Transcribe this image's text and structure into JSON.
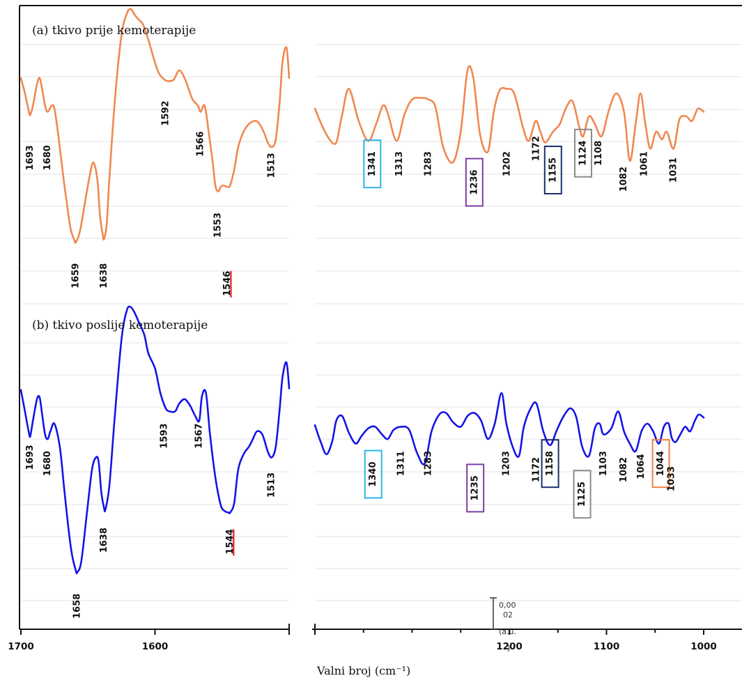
{
  "chart_data": {
    "type": "line",
    "xlabel": "Valni broj (cm⁻¹)",
    "x_tick_labels": [
      "1700",
      "1600",
      "1200",
      "1100",
      "1000"
    ],
    "grid": true,
    "scale_bar": [
      "0,00",
      "02",
      "(a.u.",
      ")"
    ],
    "colors": {
      "spectrum_a": "#f0884f",
      "spectrum_b": "#1414e6",
      "marker_red": "#e11b1b",
      "box_cyan": "#29b6e8",
      "box_purple": "#7e3aa6",
      "box_navy": "#1a2c6b",
      "box_gray": "#8c8c8c",
      "box_orange": "#ef7f3e"
    },
    "panels": [
      {
        "title": "(a) tkivo prije kemoterapije",
        "series_color": "#f0884f",
        "left_segment": {
          "x": [
            1700,
            1697,
            1694,
            1693,
            1691,
            1688,
            1686,
            1684,
            1682,
            1680,
            1677,
            1675,
            1672,
            1669,
            1666,
            1663,
            1660,
            1659,
            1656,
            1652,
            1649,
            1646,
            1643,
            1641,
            1639,
            1638,
            1636,
            1634,
            1630,
            1625,
            1621,
            1618,
            1615,
            1612,
            1609,
            1605,
            1600,
            1597,
            1593,
            1590,
            1586,
            1582,
            1578,
            1575,
            1572,
            1568,
            1566,
            1563,
            1560,
            1557,
            1555,
            1553,
            1551,
            1549,
            1546,
            1544,
            1541,
            1538,
            1534,
            1530,
            1526,
            1523,
            1519,
            1516,
            1513,
            1510,
            1507,
            1505,
            1502,
            1500
          ],
          "y": [
            4.0,
            3.0,
            1.8,
            1.6,
            2.2,
            3.6,
            4.0,
            3.2,
            2.2,
            1.8,
            2.2,
            2.0,
            0.2,
            -2.0,
            -4.0,
            -5.8,
            -6.6,
            -6.7,
            -6.0,
            -4.0,
            -2.5,
            -1.5,
            -2.6,
            -5.0,
            -6.2,
            -6.5,
            -5.5,
            -2.5,
            2.5,
            6.8,
            8.2,
            8.5,
            8.1,
            7.8,
            7.5,
            6.5,
            5.0,
            4.3,
            3.9,
            3.8,
            3.9,
            4.5,
            4.0,
            3.3,
            2.6,
            2.2,
            1.8,
            2.2,
            0.5,
            -1.5,
            -3.0,
            -3.4,
            -3.1,
            -3.0,
            -3.1,
            -3.0,
            -2.0,
            -0.5,
            0.5,
            1.0,
            1.2,
            1.1,
            0.5,
            -0.2,
            -0.5,
            0.0,
            2.5,
            5.0,
            6.0,
            4.0
          ]
        },
        "right_segment": {
          "x": [
            1400,
            1392,
            1385,
            1380,
            1377,
            1372,
            1365,
            1355,
            1345,
            1337,
            1330,
            1325,
            1316,
            1308,
            1300,
            1290,
            1283,
            1276,
            1268,
            1258,
            1250,
            1243,
            1237,
            1230,
            1222,
            1216,
            1210,
            1203,
            1195,
            1186,
            1180,
            1173,
            1168,
            1163,
            1155,
            1148,
            1142,
            1135,
            1128,
            1124,
            1118,
            1112,
            1105,
            1098,
            1090,
            1082,
            1076,
            1070,
            1065,
            1060,
            1055,
            1049,
            1043,
            1038,
            1031,
            1025,
            1018,
            1012,
            1006,
            1000
          ],
          "y": [
            2.0,
            0.8,
            0.0,
            -0.3,
            0.0,
            1.6,
            3.3,
            1.2,
            -0.1,
            1.0,
            2.2,
            1.7,
            -0.1,
            1.6,
            2.6,
            2.7,
            2.6,
            2.1,
            -0.5,
            -1.5,
            0.5,
            4.5,
            4.0,
            0.3,
            -0.8,
            1.8,
            3.2,
            3.3,
            3.0,
            0.8,
            -0.1,
            1.2,
            0.5,
            -0.2,
            0.5,
            1.0,
            2.0,
            2.5,
            0.8,
            0.2,
            1.5,
            1.0,
            0.2,
            1.8,
            3.0,
            1.8,
            -1.4,
            1.0,
            3.0,
            1.0,
            -0.6,
            0.5,
            0.0,
            0.5,
            -0.6,
            1.3,
            1.5,
            1.2,
            2.0,
            1.8
          ]
        },
        "peak_labels": [
          {
            "text": "1693",
            "x": 1693,
            "y": -1.2
          },
          {
            "text": "1680",
            "x": 1680,
            "y": -1.2
          },
          {
            "text": "1659",
            "x": 1659,
            "y": -8.9
          },
          {
            "text": "1638",
            "x": 1638,
            "y": -8.9
          },
          {
            "text": "1592",
            "x": 1592,
            "y": 1.7
          },
          {
            "text": "1566",
            "x": 1566,
            "y": -0.3
          },
          {
            "text": "1553",
            "x": 1553,
            "y": -5.6
          },
          {
            "text": "1546",
            "x": 1546,
            "y": -9.4,
            "red_marker": true
          },
          {
            "text": "1513",
            "x": 1513,
            "y": -1.7
          },
          {
            "text": "1341",
            "x": 1341,
            "y": -1.6,
            "box_color": "#29b6e8"
          },
          {
            "text": "1313",
            "x": 1313,
            "y": -1.6
          },
          {
            "text": "1283",
            "x": 1283,
            "y": -1.6
          },
          {
            "text": "1236",
            "x": 1236,
            "y": -2.8,
            "box_color": "#7e3aa6"
          },
          {
            "text": "1202",
            "x": 1202,
            "y": -1.6
          },
          {
            "text": "1172",
            "x": 1172,
            "y": -0.6
          },
          {
            "text": "1155",
            "x": 1155,
            "y": -2.0,
            "box_color": "#1a2c6b"
          },
          {
            "text": "1124",
            "x": 1124,
            "y": -0.9,
            "box_color": "#8c8c8c"
          },
          {
            "text": "1108",
            "x": 1108,
            "y": -0.9
          },
          {
            "text": "1082",
            "x": 1082,
            "y": -2.6
          },
          {
            "text": "1061",
            "x": 1061,
            "y": -1.6
          },
          {
            "text": "1031",
            "x": 1031,
            "y": -2.0
          }
        ]
      },
      {
        "title": "(b) tkivo poslije kemoterapije",
        "series_color": "#1414e6",
        "left_segment": {
          "x": [
            1700,
            1697,
            1694,
            1693,
            1691,
            1688,
            1686,
            1684,
            1682,
            1680,
            1678,
            1675,
            1671,
            1668,
            1665,
            1662,
            1659,
            1658,
            1655,
            1651,
            1647,
            1644,
            1642,
            1640,
            1638,
            1637,
            1634,
            1630,
            1625,
            1621,
            1618,
            1615,
            1612,
            1608,
            1605,
            1600,
            1596,
            1592,
            1589,
            1585,
            1582,
            1578,
            1574,
            1570,
            1567,
            1565,
            1562,
            1559,
            1555,
            1551,
            1548,
            1545,
            1544,
            1541,
            1538,
            1534,
            1530,
            1527,
            1524,
            1520,
            1516,
            1513,
            1510,
            1507,
            1505,
            1502,
            1500
          ],
          "y": [
            3.2,
            1.8,
            0.4,
            0.2,
            1.2,
            2.6,
            2.7,
            1.5,
            0.3,
            0.0,
            0.5,
            1.0,
            -0.5,
            -3.0,
            -5.5,
            -7.5,
            -8.6,
            -8.7,
            -8.0,
            -5.0,
            -2.0,
            -1.2,
            -1.5,
            -3.5,
            -4.5,
            -4.6,
            -3.0,
            1.5,
            6.5,
            8.4,
            8.6,
            8.2,
            7.6,
            6.8,
            5.6,
            4.6,
            3.0,
            2.0,
            1.8,
            1.8,
            2.3,
            2.6,
            2.2,
            1.5,
            1.2,
            2.8,
            3.0,
            0.3,
            -2.5,
            -4.3,
            -4.7,
            -4.8,
            -4.8,
            -4.2,
            -2.0,
            -1.0,
            -0.5,
            0.0,
            0.5,
            0.3,
            -0.8,
            -1.2,
            -0.5,
            2.0,
            4.0,
            5.0,
            3.3
          ]
        },
        "right_segment": {
          "x": [
            1400,
            1394,
            1388,
            1382,
            1378,
            1372,
            1365,
            1358,
            1352,
            1345,
            1338,
            1331,
            1325,
            1319,
            1311,
            1303,
            1295,
            1287,
            1280,
            1272,
            1265,
            1258,
            1250,
            1243,
            1236,
            1229,
            1222,
            1215,
            1208,
            1203,
            1196,
            1190,
            1185,
            1178,
            1172,
            1165,
            1158,
            1151,
            1144,
            1137,
            1131,
            1125,
            1118,
            1112,
            1107,
            1103,
            1095,
            1088,
            1082,
            1076,
            1070,
            1064,
            1058,
            1052,
            1046,
            1041,
            1036,
            1033,
            1029,
            1024,
            1019,
            1014,
            1009,
            1005,
            1000
          ],
          "y": [
            0.9,
            -0.2,
            -1.0,
            -0.1,
            1.2,
            1.5,
            0.4,
            -0.3,
            0.2,
            0.7,
            0.8,
            0.3,
            0.0,
            0.6,
            0.8,
            0.6,
            -0.9,
            -1.6,
            0.5,
            1.6,
            1.7,
            1.1,
            0.8,
            1.5,
            1.7,
            1.2,
            0.0,
            1.0,
            3.0,
            1.0,
            -0.6,
            -1.1,
            0.8,
            2.0,
            2.3,
            0.5,
            -0.4,
            0.6,
            1.5,
            2.0,
            1.4,
            -0.5,
            -1.1,
            0.7,
            1.0,
            0.3,
            0.7,
            1.8,
            0.5,
            -0.3,
            -0.8,
            0.5,
            1.0,
            0.5,
            -0.3,
            0.8,
            1.0,
            0.1,
            -0.2,
            0.3,
            0.8,
            0.5,
            1.2,
            1.6,
            1.4
          ]
        },
        "peak_labels": [
          {
            "text": "1693",
            "x": 1693,
            "y": -1.2
          },
          {
            "text": "1680",
            "x": 1680,
            "y": -1.6
          },
          {
            "text": "1658",
            "x": 1658,
            "y": -10.9
          },
          {
            "text": "1638",
            "x": 1638,
            "y": -6.6
          },
          {
            "text": "1593",
            "x": 1593,
            "y": 0.2
          },
          {
            "text": "1567",
            "x": 1567,
            "y": 0.2
          },
          {
            "text": "1544",
            "x": 1544,
            "y": -6.7,
            "red_marker": true
          },
          {
            "text": "1513",
            "x": 1513,
            "y": -3.0
          },
          {
            "text": "1340",
            "x": 1340,
            "y": -2.3,
            "box_color": "#29b6e8"
          },
          {
            "text": "1311",
            "x": 1311,
            "y": -1.6
          },
          {
            "text": "1283",
            "x": 1283,
            "y": -1.6
          },
          {
            "text": "1235",
            "x": 1235,
            "y": -3.2,
            "box_color": "#7e3aa6"
          },
          {
            "text": "1203",
            "x": 1203,
            "y": -1.6
          },
          {
            "text": "1172",
            "x": 1172,
            "y": -2.0
          },
          {
            "text": "1158",
            "x": 1158,
            "y": -1.6,
            "box_color": "#1a2c6b"
          },
          {
            "text": "1125",
            "x": 1125,
            "y": -3.6,
            "box_color": "#8c8c8c"
          },
          {
            "text": "1103",
            "x": 1103,
            "y": -1.6
          },
          {
            "text": "1082",
            "x": 1082,
            "y": -2.0
          },
          {
            "text": "1064",
            "x": 1064,
            "y": -1.8
          },
          {
            "text": "1044",
            "x": 1044,
            "y": -1.6,
            "box_color": "#ef7f3e"
          },
          {
            "text": "1033",
            "x": 1033,
            "y": -2.6
          }
        ]
      }
    ]
  }
}
